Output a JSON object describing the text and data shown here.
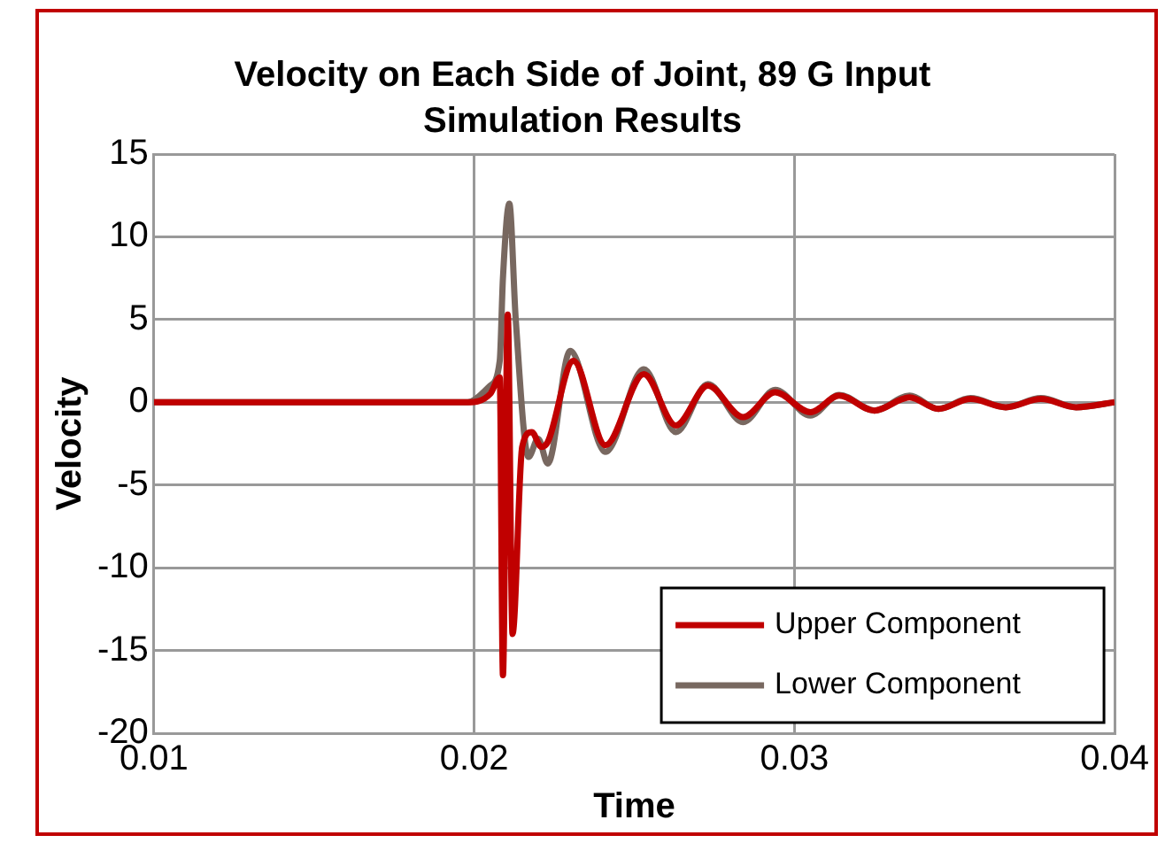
{
  "chart_data": {
    "type": "line",
    "title": "Velocity on Each Side of Joint, 89 G Input",
    "subtitle": "Simulation Results",
    "xlabel": "Time",
    "ylabel": "Velocity",
    "xlim": [
      0.01,
      0.04
    ],
    "xticks": [
      0.01,
      0.02,
      0.03,
      0.04
    ],
    "ylim": [
      -20,
      15
    ],
    "yticks": [
      -20,
      -15,
      -10,
      -5,
      0,
      5,
      10,
      15
    ],
    "grid": true,
    "legend": "bottom right",
    "marker": "none",
    "line_style": "solid",
    "series": [
      {
        "name": "Upper Component",
        "color": "#c00000",
        "x": [
          0.01,
          0.015,
          0.0198,
          0.0205,
          0.0208,
          0.0209,
          0.02105,
          0.0212,
          0.0215,
          0.0218,
          0.0221,
          0.0223,
          0.0231,
          0.0241,
          0.0253,
          0.0263,
          0.0273,
          0.0284,
          0.0294,
          0.0305,
          0.0314,
          0.0325,
          0.0336,
          0.0345,
          0.0355,
          0.0366,
          0.0377,
          0.0388,
          0.04
        ],
        "values": [
          0,
          0,
          0,
          0.5,
          1.5,
          -16.5,
          5.3,
          -14,
          -2.7,
          -1.8,
          -2.7,
          -2.4,
          2.5,
          -2.6,
          1.7,
          -1.4,
          1,
          -0.9,
          0.6,
          -0.6,
          0.4,
          -0.5,
          0.3,
          -0.4,
          0.2,
          -0.3,
          0.2,
          -0.3,
          0
        ]
      },
      {
        "name": "Lower Component",
        "color": "#786860",
        "x": [
          0.01,
          0.015,
          0.0198,
          0.0205,
          0.0208,
          0.0209,
          0.0211,
          0.0213,
          0.0217,
          0.022,
          0.0223,
          0.023,
          0.0241,
          0.0253,
          0.0263,
          0.0273,
          0.0284,
          0.0294,
          0.0305,
          0.0314,
          0.0325,
          0.0336,
          0.0345,
          0.0355,
          0.0366,
          0.0377,
          0.0388,
          0.04
        ],
        "values": [
          0,
          0,
          0,
          1,
          2.5,
          7.5,
          12,
          5,
          -3.3,
          -2.2,
          -3.7,
          3.1,
          -3,
          2,
          -1.8,
          1.1,
          -1.2,
          0.75,
          -0.8,
          0.45,
          -0.5,
          0.4,
          -0.4,
          0.25,
          -0.3,
          0.25,
          -0.3,
          0
        ]
      }
    ]
  }
}
